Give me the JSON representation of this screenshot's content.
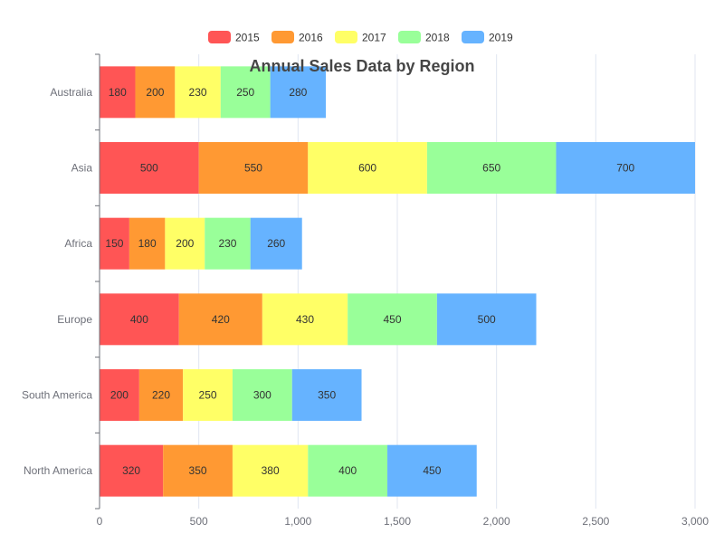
{
  "chart_data": {
    "type": "bar",
    "orientation": "horizontal",
    "stacked": true,
    "title": "Annual Sales Data by Region",
    "xlabel": "",
    "ylabel": "",
    "categories": [
      "North America",
      "South America",
      "Europe",
      "Africa",
      "Asia",
      "Australia"
    ],
    "series": [
      {
        "name": "2015",
        "color": "#ff5555",
        "values": [
          320,
          200,
          400,
          150,
          500,
          180
        ]
      },
      {
        "name": "2016",
        "color": "#ff9933",
        "values": [
          350,
          220,
          420,
          180,
          550,
          200
        ]
      },
      {
        "name": "2017",
        "color": "#ffff66",
        "values": [
          380,
          250,
          430,
          200,
          600,
          230
        ]
      },
      {
        "name": "2018",
        "color": "#99ff99",
        "values": [
          400,
          300,
          450,
          230,
          650,
          250
        ]
      },
      {
        "name": "2019",
        "color": "#66b3ff",
        "values": [
          450,
          350,
          500,
          260,
          700,
          280
        ]
      }
    ],
    "xlim": [
      0,
      3000
    ],
    "x_ticks": [
      0,
      500,
      1000,
      1500,
      2000,
      2500,
      3000
    ],
    "x_tick_labels": [
      "0",
      "500",
      "1,000",
      "1,500",
      "2,000",
      "2,500",
      "3,000"
    ],
    "grid": true,
    "legend_position": "top-center"
  }
}
